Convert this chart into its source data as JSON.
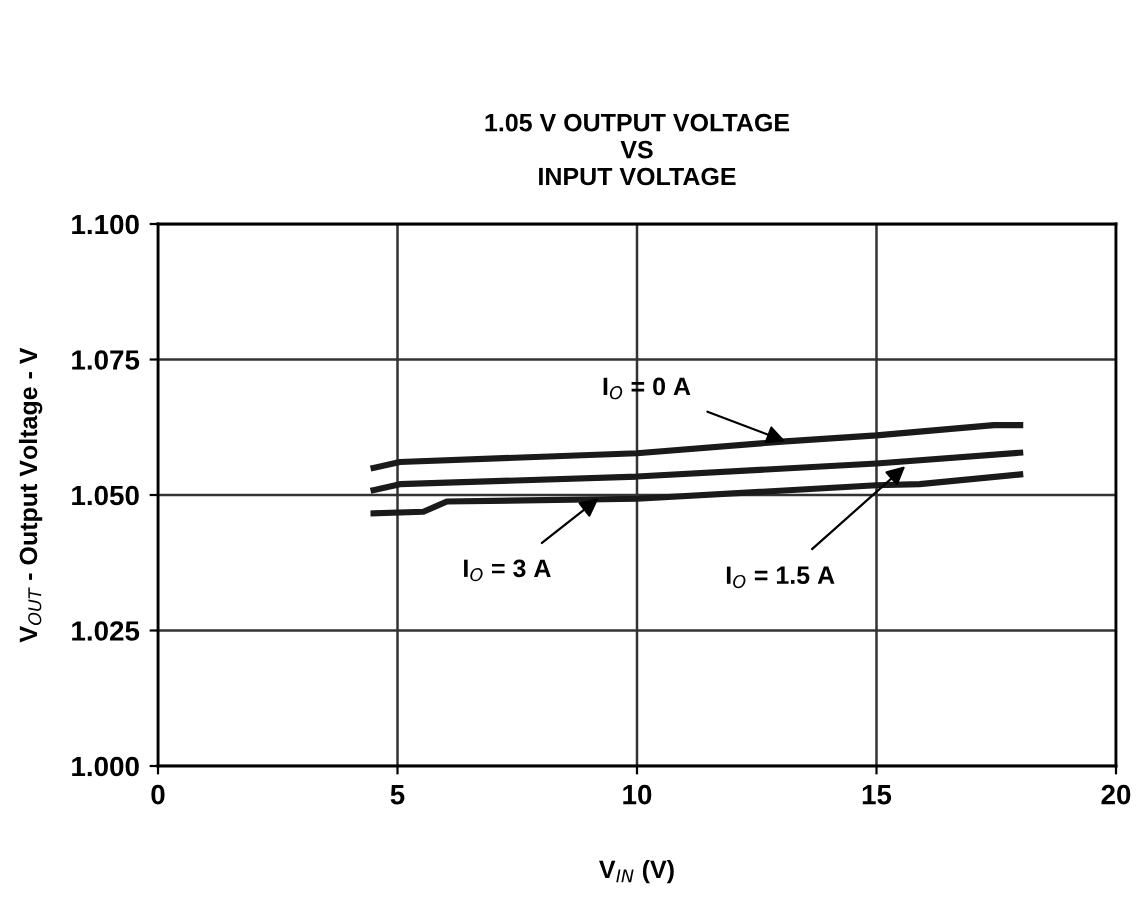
{
  "chart_data": {
    "type": "line",
    "title": "1.05 V OUTPUT VOLTAGE\nVS\nINPUT VOLTAGE",
    "xlabel": "V$_{IN}$ (V)",
    "ylabel": "V$_{OUT}$ - Output Voltage - V",
    "series": [
      {
        "color": "#1a1a1a",
        "x": [
          4.5,
          5.05,
          10,
          13.1,
          15,
          17.45,
          18
        ],
        "values": [
          1.055,
          1.0561,
          1.0577,
          1.0599,
          1.061,
          1.0629,
          1.0629
        ]
      },
      {
        "color": "#1a1a1a",
        "x": [
          4.5,
          5.05,
          10,
          15,
          18
        ],
        "values": [
          1.0509,
          1.052,
          1.0534,
          1.0558,
          1.0578
        ]
      },
      {
        "color": "#1a1a1a",
        "x": [
          4.5,
          5.54,
          6.03,
          10,
          15,
          15.9,
          18
        ],
        "values": [
          1.0466,
          1.0469,
          1.0488,
          1.0493,
          1.0518,
          1.052,
          1.0538
        ]
      }
    ],
    "annotations": [
      {
        "text": "I$_{O}$ = 0 A",
        "x": 13.1,
        "y": 1.0599
      },
      {
        "text": "I$_{O}$ = 3 A",
        "x": 9.2,
        "y": 1.0494
      },
      {
        "text": "I$_{O}$ = 1.5 A",
        "x": 15.6,
        "y": 1.0553
      }
    ],
    "xlim": [
      0,
      20
    ],
    "xticks": [
      0,
      5,
      10,
      15,
      20
    ],
    "ylim": [
      1.0,
      1.1
    ],
    "yticks": [
      {
        "value": 1.0,
        "label": "1.000"
      },
      {
        "value": 1.025,
        "label": "1.025"
      },
      {
        "value": 1.05,
        "label": "1.050"
      },
      {
        "value": 1.075,
        "label": "1.075"
      },
      {
        "value": 1.1,
        "label": "1.100"
      }
    ],
    "grid": true,
    "legend": false,
    "marker": "none",
    "line_style": "solid"
  }
}
